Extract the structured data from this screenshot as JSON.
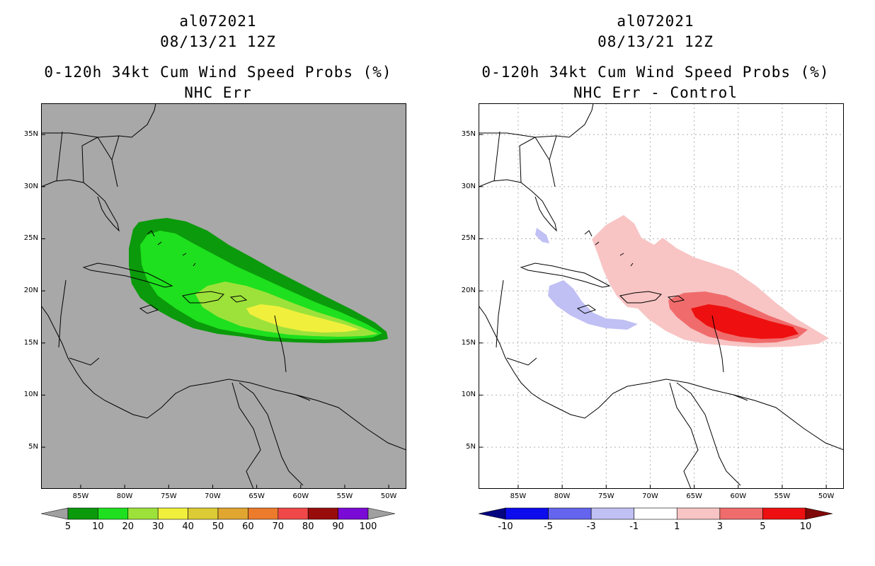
{
  "left_panel": {
    "storm_id": "al072021",
    "date": "08/13/21 12Z",
    "product": "0-120h 34kt Cum Wind Speed Probs (%)",
    "subtitle": "NHC Err",
    "colorbar_labels": [
      "5",
      "10",
      "20",
      "30",
      "40",
      "50",
      "60",
      "70",
      "80",
      "90",
      "100"
    ],
    "colorbar_colors": [
      "#0b9a0b",
      "#1ee01e",
      "#9de23a",
      "#f0f03c",
      "#dccb34",
      "#e0a630",
      "#ec7b2c",
      "#f04848",
      "#980c0c",
      "#7a0ad6"
    ],
    "under_color": "#a0a0a0",
    "over_color": "#a0a0a0",
    "background_color": "#a8a8a8"
  },
  "right_panel": {
    "storm_id": "al072021",
    "date": "08/13/21 12Z",
    "product": "0-120h 34kt Cum Wind Speed Probs (%)",
    "subtitle": "NHC Err - Control",
    "colorbar_labels": [
      "-10",
      "-5",
      "-3",
      "-1",
      "1",
      "3",
      "5",
      "10"
    ],
    "colorbar_colors": [
      "#0c0ced",
      "#6464ee",
      "#c0c0f4",
      "#ffffff",
      "#f8c4c4",
      "#f06c6c",
      "#ee1010"
    ],
    "under_color": "#050580",
    "over_color": "#800808",
    "background_color": "#ffffff"
  },
  "map": {
    "lon_labels": [
      "85W",
      "80W",
      "75W",
      "70W",
      "65W",
      "60W",
      "55W",
      "50W"
    ],
    "lon_values": [
      -85,
      -80,
      -75,
      -70,
      -65,
      -60,
      -55,
      -50
    ],
    "lat_labels": [
      "35N",
      "30N",
      "25N",
      "20N",
      "15N",
      "10N",
      "5N"
    ],
    "lat_values": [
      35,
      30,
      25,
      20,
      15,
      10,
      5
    ],
    "lon_range": [
      -89.5,
      -48
    ],
    "lat_range": [
      1,
      38
    ]
  }
}
